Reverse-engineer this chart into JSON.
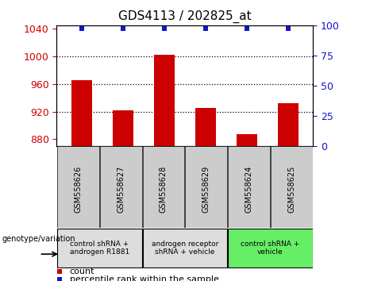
{
  "title": "GDS4113 / 202825_at",
  "samples": [
    "GSM558626",
    "GSM558627",
    "GSM558628",
    "GSM558629",
    "GSM558624",
    "GSM558625"
  ],
  "bar_values": [
    965,
    922,
    1002,
    925,
    887,
    932
  ],
  "percentile_values": [
    97,
    97,
    97,
    97,
    97,
    97
  ],
  "ylim_left": [
    870,
    1045
  ],
  "ylim_right": [
    0,
    100
  ],
  "yticks_left": [
    880,
    920,
    960,
    1000,
    1040
  ],
  "yticks_right": [
    0,
    25,
    50,
    75,
    100
  ],
  "bar_color": "#cc0000",
  "percentile_color": "#1515cc",
  "groups": [
    {
      "label": "control shRNA +\nandrogen R1881",
      "start": 0,
      "end": 2,
      "color": "#dddddd"
    },
    {
      "label": "androgen receptor\nshRNA + vehicle",
      "start": 2,
      "end": 4,
      "color": "#dddddd"
    },
    {
      "label": "control shRNA +\nvehicle",
      "start": 4,
      "end": 6,
      "color": "#66ee66"
    }
  ],
  "legend_count_color": "#cc0000",
  "legend_percentile_color": "#1515cc",
  "bar_width": 0.5,
  "title_fontsize": 11,
  "tick_fontsize": 9,
  "left_tick_color": "#cc0000",
  "right_tick_color": "#1515cc",
  "sample_box_color": "#cccccc",
  "grid_dotted_color": "#000000",
  "grid_ticks": [
    920,
    960,
    1000
  ]
}
